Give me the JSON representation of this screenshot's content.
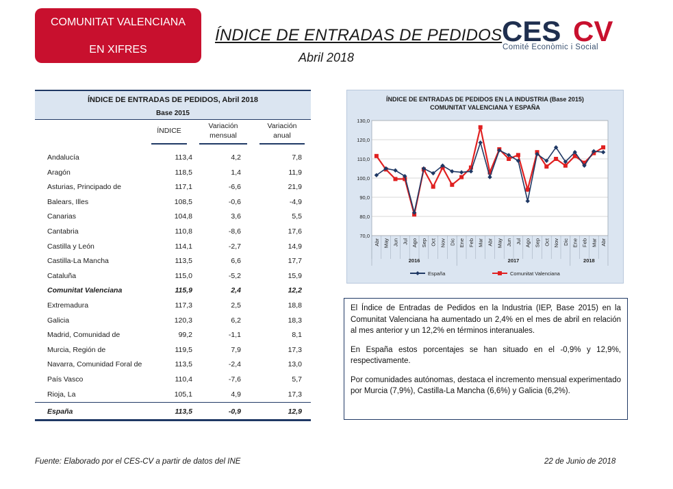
{
  "badge": {
    "line1": "COMUNITAT VALENCIANA",
    "line2": "EN XIFRES"
  },
  "header": {
    "title": "ÍNDICE DE ENTRADAS DE PEDIDOS",
    "subtitle": "Abril 2018"
  },
  "logo": {
    "main_a": "CES",
    "main_b": "CV",
    "tagline": "Comité Econòmic i Social",
    "colors": {
      "navy": "#1f2f4f",
      "red": "#c8102e"
    }
  },
  "table": {
    "title": "ÍNDICE DE ENTRADAS DE PEDIDOS, Abril 2018",
    "subtitle": "Base 2015",
    "columns": {
      "indice": "ÍNDICE",
      "mensual_1": "Variación",
      "mensual_2": "mensual",
      "anual_1": "Variación",
      "anual_2": "anual"
    },
    "rows": [
      {
        "name": "Andalucía",
        "v1": "113,4",
        "v2": "4,2",
        "v3": "7,8"
      },
      {
        "name": "Aragón",
        "v1": "118,5",
        "v2": "1,4",
        "v3": "11,9"
      },
      {
        "name": "Asturias, Principado de",
        "v1": "117,1",
        "v2": "-6,6",
        "v3": "21,9"
      },
      {
        "name": "Balears, Illes",
        "v1": "108,5",
        "v2": "-0,6",
        "v3": "-4,9"
      },
      {
        "name": "Canarias",
        "v1": "104,8",
        "v2": "3,6",
        "v3": "5,5"
      },
      {
        "name": "Cantabria",
        "v1": "110,8",
        "v2": "-8,6",
        "v3": "17,6"
      },
      {
        "name": "Castilla y León",
        "v1": "114,1",
        "v2": "-2,7",
        "v3": "14,9"
      },
      {
        "name": "Castilla-La Mancha",
        "v1": "113,5",
        "v2": "6,6",
        "v3": "17,7"
      },
      {
        "name": "Cataluña",
        "v1": "115,0",
        "v2": "-5,2",
        "v3": "15,9"
      },
      {
        "name": "Comunitat Valenciana",
        "v1": "115,9",
        "v2": "2,4",
        "v3": "12,2"
      },
      {
        "name": "Extremadura",
        "v1": "117,3",
        "v2": "2,5",
        "v3": "18,8"
      },
      {
        "name": "Galicia",
        "v1": "120,3",
        "v2": "6,2",
        "v3": "18,3"
      },
      {
        "name": "Madrid, Comunidad de",
        "v1": "99,2",
        "v2": "-1,1",
        "v3": "8,1"
      },
      {
        "name": "Murcia, Región de",
        "v1": "119,5",
        "v2": "7,9",
        "v3": "17,3"
      },
      {
        "name": "Navarra, Comunidad Foral de",
        "v1": "113,5",
        "v2": "-2,4",
        "v3": "13,0"
      },
      {
        "name": "País Vasco",
        "v1": "110,4",
        "v2": "-7,6",
        "v3": "5,7"
      },
      {
        "name": "Rioja, La",
        "v1": "105,1",
        "v2": "4,9",
        "v3": "17,3"
      },
      {
        "name": "España",
        "v1": "113,5",
        "v2": "-0,9",
        "v3": "12,9"
      }
    ]
  },
  "chart_data": {
    "type": "line",
    "title_1": "ÍNDICE DE ENTRADAS DE PEDIDOS EN LA INDUSTRIA (Base 2015)",
    "title_2": "COMUNITAT VALENCIANA Y ESPAÑA",
    "x": [
      "Abr",
      "May",
      "Jun",
      "Jul",
      "Ago",
      "Sep",
      "Oct",
      "Nov",
      "Dic",
      "Ene",
      "Feb",
      "Mar",
      "Abr",
      "May",
      "Jun",
      "Jul",
      "Ago",
      "Sep",
      "Oct",
      "Nov",
      "Dic",
      "Ene",
      "Feb",
      "Mar",
      "Abr"
    ],
    "year_groups": [
      {
        "label": "2016",
        "count": 9
      },
      {
        "label": "2017",
        "count": 12
      },
      {
        "label": "2018",
        "count": 4
      }
    ],
    "ylim": [
      70,
      130
    ],
    "yticks": [
      "70,0",
      "80,0",
      "90,0",
      "100,0",
      "110,0",
      "120,0",
      "130,0"
    ],
    "grid": true,
    "legend_position": "bottom",
    "series": [
      {
        "name": "España",
        "color": "#1f3864",
        "marker": "diamond",
        "values": [
          101.5,
          105.0,
          104.0,
          101.0,
          82.0,
          105.0,
          102.5,
          106.5,
          103.5,
          103.0,
          103.5,
          118.5,
          100.5,
          114.5,
          112.0,
          109.0,
          88.0,
          112.5,
          109.0,
          116.0,
          108.5,
          113.5,
          106.5,
          114.0,
          113.5
        ]
      },
      {
        "name": "Comunitat Valenciana",
        "color": "#e02020",
        "marker": "square",
        "values": [
          111.5,
          104.5,
          99.5,
          99.5,
          81.0,
          104.5,
          95.5,
          105.5,
          96.5,
          100.5,
          105.5,
          126.5,
          103.0,
          115.0,
          110.0,
          112.0,
          94.0,
          113.5,
          106.0,
          110.0,
          106.5,
          111.5,
          108.0,
          113.0,
          116.0
        ]
      }
    ]
  },
  "text": {
    "p1": "El Índice de Entradas de Pedidos en la Industria (IEP, Base 2015) en la Comunitat Valenciana ha aumentado un 2,4% en el mes de abril en relación al mes anterior y un 12,2% en términos interanuales.",
    "p2": "En España estos porcentajes se han situado en el -0,9% y 12,9%, respectivamente.",
    "p3": "Por comunidades autónomas, destaca el incremento mensual experimentado por Murcia (7,9%), Castilla-La Mancha (6,6%) y Galicia (6,2%)."
  },
  "footer": {
    "source": "Fuente: Elaborado por el CES-CV a partir de datos del INE",
    "date": "22  de Junio de 2018"
  }
}
